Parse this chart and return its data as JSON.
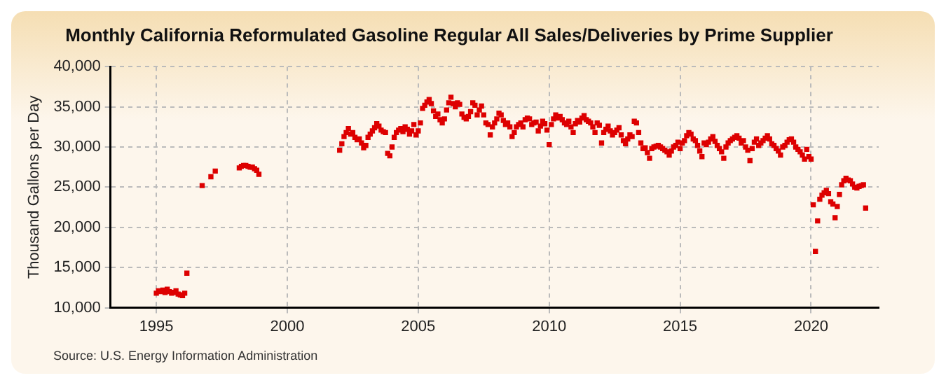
{
  "chart_data": {
    "type": "scatter",
    "title": "Monthly California Reformulated Gasoline Regular All Sales/Deliveries by Prime Supplier",
    "ylabel": "Thousand Gallons per Day",
    "annotations": [
      "Source: U.S. Energy Information Administration"
    ],
    "x": [
      "1995-01",
      "1995-02",
      "1995-03",
      "1995-04",
      "1995-05",
      "1995-06",
      "1995-07",
      "1995-08",
      "1995-09",
      "1995-10",
      "1995-11",
      "1995-12",
      "1996-01",
      "1996-02",
      "1996-03",
      "1996-10",
      "1997-02",
      "1997-04",
      "1998-03",
      "1998-04",
      "1998-05",
      "1998-06",
      "1998-07",
      "1998-08",
      "1998-09",
      "1998-10",
      "1998-11",
      "1998-12",
      "2002-01",
      "2002-02",
      "2002-03",
      "2002-04",
      "2002-05",
      "2002-06",
      "2002-07",
      "2002-08",
      "2002-09",
      "2002-10",
      "2002-11",
      "2002-12",
      "2003-01",
      "2003-02",
      "2003-03",
      "2003-04",
      "2003-05",
      "2003-06",
      "2003-07",
      "2003-08",
      "2003-09",
      "2003-10",
      "2003-11",
      "2003-12",
      "2004-01",
      "2004-02",
      "2004-03",
      "2004-04",
      "2004-05",
      "2004-06",
      "2004-07",
      "2004-08",
      "2004-09",
      "2004-10",
      "2004-11",
      "2004-12",
      "2005-01",
      "2005-02",
      "2005-03",
      "2005-04",
      "2005-05",
      "2005-06",
      "2005-07",
      "2005-08",
      "2005-09",
      "2005-10",
      "2005-11",
      "2005-12",
      "2006-01",
      "2006-02",
      "2006-03",
      "2006-04",
      "2006-05",
      "2006-06",
      "2006-07",
      "2006-08",
      "2006-09",
      "2006-10",
      "2006-11",
      "2006-12",
      "2007-01",
      "2007-02",
      "2007-03",
      "2007-04",
      "2007-05",
      "2007-06",
      "2007-07",
      "2007-08",
      "2007-09",
      "2007-10",
      "2007-11",
      "2007-12",
      "2008-01",
      "2008-02",
      "2008-03",
      "2008-04",
      "2008-05",
      "2008-06",
      "2008-07",
      "2008-08",
      "2008-09",
      "2008-10",
      "2008-11",
      "2008-12",
      "2009-01",
      "2009-02",
      "2009-03",
      "2009-04",
      "2009-05",
      "2009-06",
      "2009-07",
      "2009-08",
      "2009-09",
      "2009-10",
      "2009-11",
      "2009-12",
      "2010-01",
      "2010-02",
      "2010-03",
      "2010-04",
      "2010-05",
      "2010-06",
      "2010-07",
      "2010-08",
      "2010-09",
      "2010-10",
      "2010-11",
      "2010-12",
      "2011-01",
      "2011-02",
      "2011-03",
      "2011-04",
      "2011-05",
      "2011-06",
      "2011-07",
      "2011-08",
      "2011-09",
      "2011-10",
      "2011-11",
      "2011-12",
      "2012-01",
      "2012-02",
      "2012-03",
      "2012-04",
      "2012-05",
      "2012-06",
      "2012-07",
      "2012-08",
      "2012-09",
      "2012-10",
      "2012-11",
      "2012-12",
      "2013-01",
      "2013-02",
      "2013-03",
      "2013-04",
      "2013-05",
      "2013-06",
      "2013-07",
      "2013-08",
      "2013-09",
      "2013-10",
      "2013-11",
      "2013-12",
      "2014-01",
      "2014-02",
      "2014-03",
      "2014-04",
      "2014-05",
      "2014-06",
      "2014-07",
      "2014-08",
      "2014-09",
      "2014-10",
      "2014-11",
      "2014-12",
      "2015-01",
      "2015-02",
      "2015-03",
      "2015-04",
      "2015-05",
      "2015-06",
      "2015-07",
      "2015-08",
      "2015-09",
      "2015-10",
      "2015-11",
      "2015-12",
      "2016-01",
      "2016-02",
      "2016-03",
      "2016-04",
      "2016-05",
      "2016-06",
      "2016-07",
      "2016-08",
      "2016-09",
      "2016-10",
      "2016-11",
      "2016-12",
      "2017-01",
      "2017-02",
      "2017-03",
      "2017-04",
      "2017-05",
      "2017-06",
      "2017-07",
      "2017-08",
      "2017-09",
      "2017-10",
      "2017-11",
      "2017-12",
      "2018-01",
      "2018-02",
      "2018-03",
      "2018-04",
      "2018-05",
      "2018-06",
      "2018-07",
      "2018-08",
      "2018-09",
      "2018-10",
      "2018-11",
      "2018-12",
      "2019-01",
      "2019-02",
      "2019-03",
      "2019-04",
      "2019-05",
      "2019-06",
      "2019-07",
      "2019-08",
      "2019-09",
      "2019-10",
      "2019-11",
      "2019-12",
      "2020-01",
      "2020-02",
      "2020-03",
      "2020-04",
      "2020-05",
      "2020-06",
      "2020-07",
      "2020-08",
      "2020-09",
      "2020-10",
      "2020-11",
      "2020-12",
      "2021-01",
      "2021-02",
      "2021-03",
      "2021-04",
      "2021-05",
      "2021-06",
      "2021-07",
      "2021-08",
      "2021-09",
      "2021-10",
      "2021-11",
      "2021-12",
      "2022-01",
      "2022-02"
    ],
    "series": [
      {
        "color": "#dd0000",
        "values": [
          11800,
          12100,
          12000,
          12200,
          11900,
          12300,
          12000,
          11800,
          11900,
          12100,
          11700,
          11600,
          11500,
          11800,
          14300,
          25200,
          26300,
          27000,
          27400,
          27600,
          27700,
          27700,
          27600,
          27500,
          27500,
          27300,
          27100,
          26600,
          29600,
          30400,
          31300,
          31800,
          32300,
          31600,
          31800,
          31200,
          30900,
          31000,
          30500,
          29900,
          30200,
          31200,
          31600,
          32000,
          32400,
          32900,
          32600,
          32100,
          31900,
          31800,
          29200,
          28900,
          30000,
          31200,
          31800,
          32100,
          32300,
          31900,
          32500,
          32200,
          31600,
          32000,
          32800,
          31500,
          32000,
          33000,
          34800,
          35200,
          35600,
          35900,
          35400,
          34500,
          33800,
          34100,
          33400,
          33000,
          33500,
          34600,
          35500,
          36200,
          35400,
          35000,
          35500,
          35300,
          34100,
          33700,
          33500,
          33800,
          34400,
          35500,
          35200,
          34000,
          34600,
          35100,
          34000,
          33000,
          32800,
          31500,
          32500,
          33000,
          33500,
          34200,
          34000,
          33300,
          32800,
          33000,
          32500,
          31300,
          31800,
          32500,
          32800,
          33000,
          32500,
          33400,
          33600,
          33500,
          32800,
          33000,
          33100,
          32000,
          32600,
          33200,
          32900,
          32100,
          30300,
          32800,
          33500,
          34000,
          33600,
          33800,
          33400,
          33000,
          32800,
          33200,
          32500,
          31800,
          32900,
          33300,
          33100,
          33600,
          33900,
          33400,
          33200,
          33000,
          32500,
          31800,
          33000,
          32700,
          30500,
          31800,
          32200,
          32600,
          32000,
          31500,
          31800,
          32100,
          32400,
          31500,
          30800,
          30400,
          31000,
          31500,
          31300,
          33200,
          33000,
          31800,
          30500,
          29800,
          29900,
          29300,
          28600,
          29800,
          30000,
          30100,
          30200,
          30000,
          29800,
          29600,
          29400,
          29000,
          29500,
          30000,
          30200,
          30600,
          29800,
          30500,
          30800,
          31400,
          31800,
          31600,
          31000,
          30800,
          30200,
          29500,
          28800,
          30500,
          30300,
          30600,
          31000,
          31300,
          30700,
          30200,
          29800,
          29400,
          28600,
          30000,
          30500,
          30800,
          31000,
          31200,
          31400,
          31100,
          30500,
          30800,
          30000,
          29600,
          28300,
          29800,
          30600,
          31000,
          30200,
          30500,
          30800,
          31100,
          31400,
          31000,
          30400,
          30200,
          29800,
          29500,
          29000,
          30000,
          30200,
          30600,
          30900,
          31000,
          30600,
          30000,
          29700,
          29400,
          29000,
          28500,
          29700,
          28800,
          28500,
          22800,
          17000,
          20800,
          23500,
          24000,
          24300,
          24600,
          24200,
          23200,
          22900,
          21200,
          22600,
          24100,
          25300,
          25800,
          26100,
          25900,
          25800,
          25400,
          25000,
          24900,
          25100,
          25200,
          25300,
          22400
        ]
      }
    ],
    "xlim": [
      "1993-04",
      "2022-08"
    ],
    "xticks": [
      "1995",
      "2000",
      "2005",
      "2010",
      "2015",
      "2020"
    ],
    "ylim": [
      10000,
      40000
    ],
    "yticks": [
      {
        "value": 10000,
        "label": "10,000"
      },
      {
        "value": 15000,
        "label": "15,000"
      },
      {
        "value": 20000,
        "label": "20,000"
      },
      {
        "value": 25000,
        "label": "25,000"
      },
      {
        "value": 30000,
        "label": "30,000"
      },
      {
        "value": 35000,
        "label": "35,000"
      },
      {
        "value": 40000,
        "label": "40,000"
      }
    ],
    "grid": true,
    "marker": "square"
  }
}
